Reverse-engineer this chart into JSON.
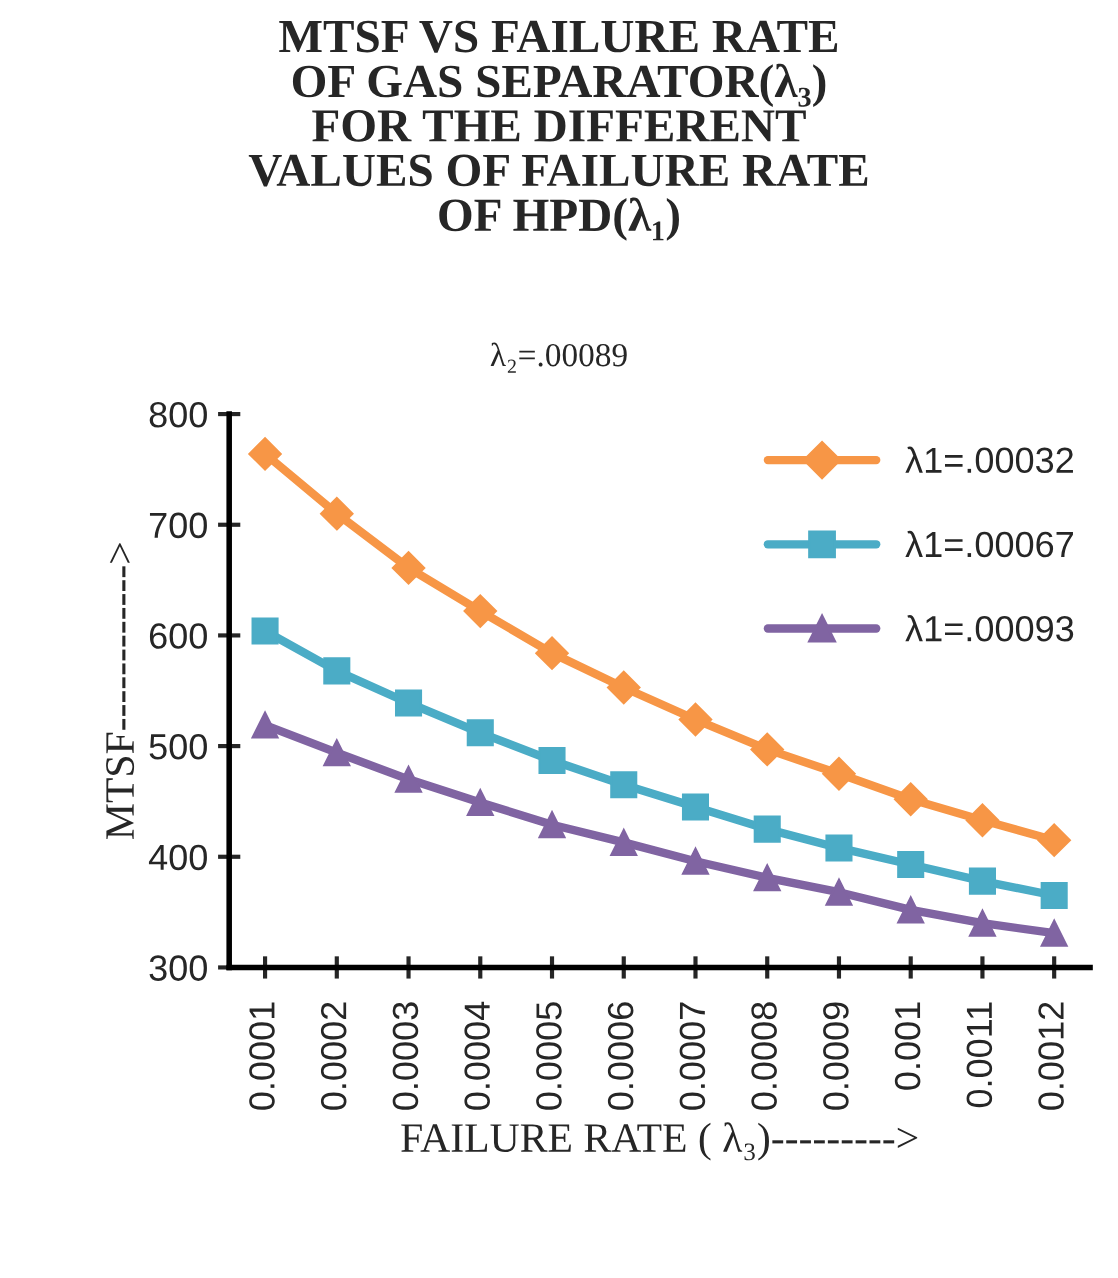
{
  "chart_data": {
    "type": "line",
    "title": "MTSF VS FAILURE RATE\nOF GAS SEPARATOR(λ₃)\nFOR THE DIFFERENT\nVALUES OF FAILURE RATE\nOF HPD(λ₁)",
    "subtitle": "λ₂=.00089",
    "xlabel": "FAILURE RATE ( λ₃)--------->",
    "ylabel": "MTSF------------>",
    "categories": [
      "0.0001",
      "0.0002",
      "0.0003",
      "0.0004",
      "0.0005",
      "0.0006",
      "0.0007",
      "0.0008",
      "0.0009",
      "0.001",
      "0.0011",
      "0.0012"
    ],
    "series": [
      {
        "name": "λ1=.00032",
        "color": "#f79646",
        "marker": "diamond",
        "values": [
          764,
          710,
          661,
          622,
          584,
          553,
          524,
          497,
          475,
          452,
          433,
          415
        ]
      },
      {
        "name": "λ1=.00067",
        "color": "#4bacc6",
        "marker": "square",
        "values": [
          604,
          568,
          539,
          512,
          487,
          465,
          445,
          425,
          408,
          393,
          378,
          365
        ]
      },
      {
        "name": "λ1=.00093",
        "color": "#8064a2",
        "marker": "triangle",
        "values": [
          519,
          494,
          470,
          449,
          429,
          413,
          396,
          381,
          368,
          352,
          340,
          331
        ]
      }
    ],
    "ylim": [
      300,
      800
    ],
    "yticks": [
      300,
      400,
      500,
      600,
      700,
      800
    ],
    "grid": false,
    "legend": "top right",
    "line_style": "solid"
  }
}
